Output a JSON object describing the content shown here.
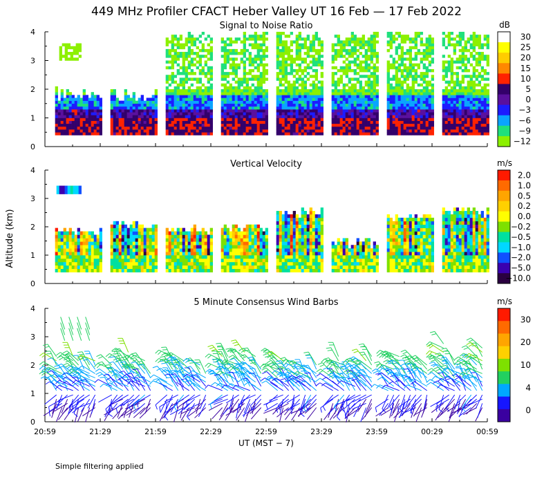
{
  "figure": {
    "title": "449 MHz Profiler CFACT Heber Valley UT 16 Feb — 17 Feb 2022",
    "ylabel": "Altitude (km)",
    "xlabel": "UT  (MST − 7)",
    "footnote": "Simple filtering applied"
  },
  "chart_data": [
    {
      "type": "heatmap",
      "title": "Signal to Noise Ratio",
      "colorbar_unit": "dB",
      "colorbar_labels": [
        "30",
        "25",
        "20",
        "15",
        "10",
        "5",
        "0",
        "−3",
        "−6",
        "−9",
        "−12"
      ],
      "colorbar_colors": [
        "#ffffff",
        "#ffff00",
        "#ffcc00",
        "#ff8800",
        "#ff2200",
        "#33006a",
        "#5a109e",
        "#1c1cff",
        "#0aa4ff",
        "#1fe07c",
        "#8cf000"
      ],
      "x_ticks": [
        "20:59",
        "21:29",
        "21:59",
        "22:29",
        "22:59",
        "23:29",
        "23:59",
        "00:29",
        "00:59"
      ],
      "y_ticks": [
        "0",
        "1",
        "2",
        "3",
        "4"
      ],
      "ylim": [
        0,
        4
      ],
      "blocks": [
        {
          "start": "21:00",
          "end": "21:25",
          "top_km": 2.05
        },
        {
          "start": "21:30",
          "end": "21:55",
          "top_km": 2.0
        },
        {
          "start": "22:00",
          "end": "22:25",
          "top_km": 4.0
        },
        {
          "start": "22:30",
          "end": "22:55",
          "top_km": 4.0
        },
        {
          "start": "23:00",
          "end": "23:25",
          "top_km": 4.0
        },
        {
          "start": "23:30",
          "end": "23:55",
          "top_km": 4.0
        },
        {
          "start": "00:00",
          "end": "00:25",
          "top_km": 4.0
        },
        {
          "start": "00:30",
          "end": "00:55",
          "top_km": 4.0
        }
      ]
    },
    {
      "type": "heatmap",
      "title": "Vertical Velocity",
      "colorbar_unit": "m/s",
      "colorbar_labels": [
        "2.0",
        "1.0",
        "0.5",
        "0.2",
        "0.0",
        "−0.2",
        "−0.5",
        "−1.0",
        "−2.0",
        "−5.0",
        "−10.0"
      ],
      "colorbar_colors": [
        "#ff1a00",
        "#ff6a00",
        "#ffa500",
        "#ffd000",
        "#ffff00",
        "#7ee000",
        "#00e0a0",
        "#00d8ff",
        "#1050ff",
        "#3a00b0",
        "#2a0040"
      ],
      "ylim": [
        0,
        4
      ],
      "y_ticks": [
        "0",
        "1",
        "2",
        "3",
        "4"
      ],
      "blocks": [
        {
          "start": "21:00",
          "end": "21:25",
          "top_km": 1.95
        },
        {
          "start": "21:30",
          "end": "21:55",
          "top_km": 2.2
        },
        {
          "start": "22:00",
          "end": "22:25",
          "top_km": 2.0
        },
        {
          "start": "22:30",
          "end": "22:55",
          "top_km": 2.05
        },
        {
          "start": "23:00",
          "end": "23:25",
          "top_km": 2.6
        },
        {
          "start": "23:30",
          "end": "23:55",
          "top_km": 1.5
        },
        {
          "start": "00:00",
          "end": "00:25",
          "top_km": 2.4
        },
        {
          "start": "00:30",
          "end": "00:55",
          "top_km": 2.6
        }
      ]
    },
    {
      "type": "scatter",
      "title": "5 Minute Consensus Wind Barbs",
      "colorbar_unit": "m/s",
      "colorbar_labels": [
        "30",
        "20",
        "10",
        "4",
        "0"
      ],
      "colorbar_colors": [
        "#ff1a00",
        "#ff6a00",
        "#ffa500",
        "#ffd000",
        "#7ee000",
        "#22d060",
        "#00a8ff",
        "#1616ff",
        "#3a00a0"
      ],
      "ylim": [
        0,
        4
      ],
      "y_ticks": [
        "0",
        "1",
        "2",
        "3",
        "4"
      ],
      "speed_profile_m_s": [
        {
          "alt_km": 0.5,
          "speed": 2
        },
        {
          "alt_km": 1.0,
          "speed": 6
        },
        {
          "alt_km": 1.5,
          "speed": 9
        },
        {
          "alt_km": 2.0,
          "speed": 12
        },
        {
          "alt_km": 2.5,
          "speed": 14
        },
        {
          "alt_km": 3.0,
          "speed": 16
        }
      ]
    }
  ]
}
